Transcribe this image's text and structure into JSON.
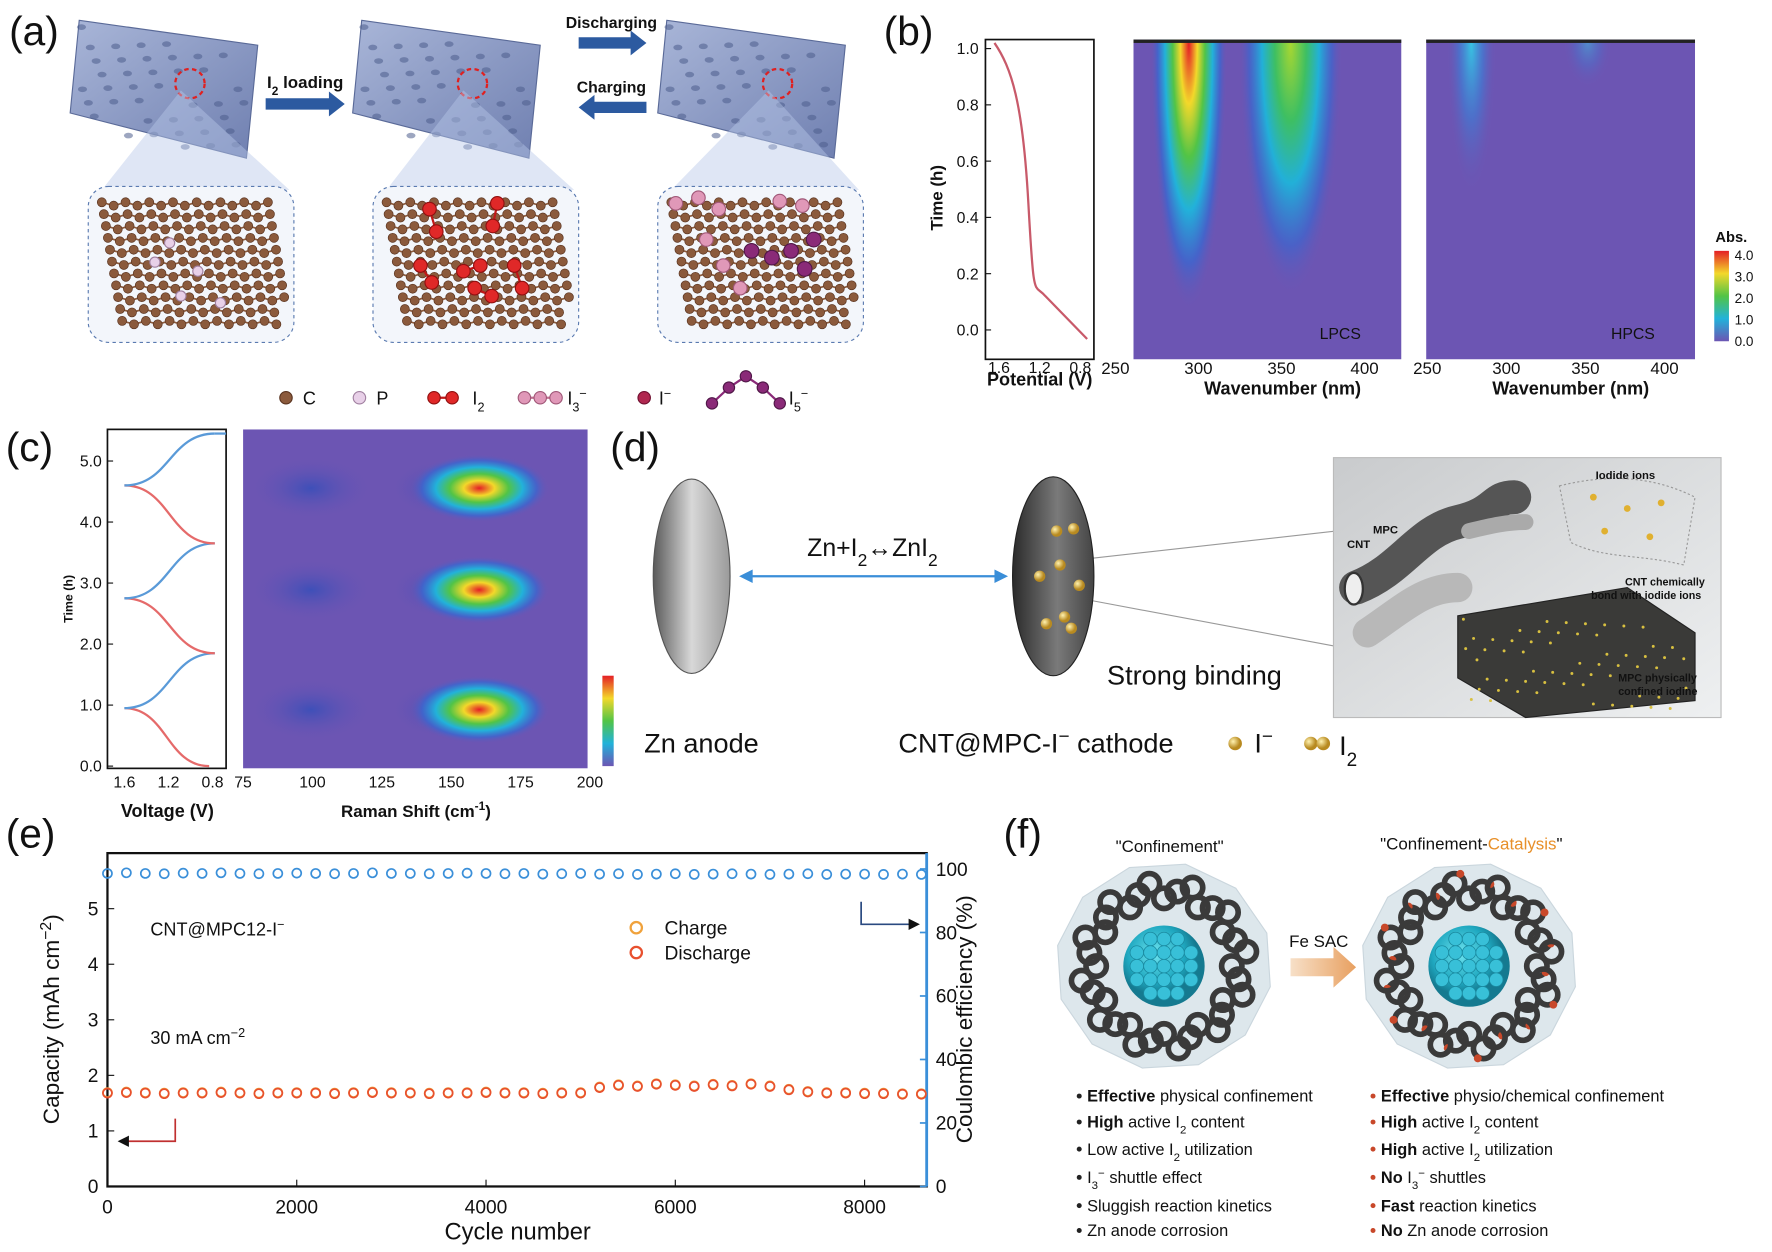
{
  "panel_labels": [
    "(a)",
    "(b)",
    "(c)",
    "(d)",
    "(e)",
    "(f)"
  ],
  "panel_a": {
    "arrows": {
      "loading": [
        {
          "t": "I"
        },
        {
          "sub": "2"
        },
        {
          "t": " loading"
        }
      ],
      "discharging": "Discharging",
      "charging": "Charging"
    },
    "legend": [
      "C",
      "P",
      [
        {
          "t": "I"
        },
        {
          "sub": "2"
        }
      ],
      [
        {
          "t": "I"
        },
        {
          "sub": "3"
        },
        {
          "sup": "−"
        }
      ],
      [
        {
          "t": "I"
        },
        {
          "sup": "−"
        }
      ],
      [
        {
          "t": "I"
        },
        {
          "sub": "5"
        },
        {
          "sup": "−"
        }
      ]
    ]
  },
  "panel_b": {
    "potential_plot": {
      "y_label": "Time (h)",
      "x_label": "Potential (V)",
      "yticks": [
        "0.0",
        "0.2",
        "0.4",
        "0.6",
        "0.8",
        "1.0"
      ],
      "xticks": [
        "1.6",
        "1.2",
        "0.8"
      ]
    },
    "maps": [
      {
        "label": "LPCS"
      },
      {
        "label": "HPCS"
      }
    ],
    "map_xticks": [
      "250",
      "300",
      "350",
      "400"
    ],
    "map_x_label": "Wavenumber (nm)",
    "colorbar": {
      "title": "Abs.",
      "ticks": [
        "4.0",
        "3.0",
        "2.0",
        "1.0",
        "0.0"
      ]
    }
  },
  "panel_c": {
    "y_label": "Time (h)",
    "yticks": [
      "0.0",
      "1.0",
      "2.0",
      "3.0",
      "4.0",
      "5.0"
    ],
    "xticks": [
      "1.6",
      "1.2",
      "0.8"
    ],
    "x_label": "Voltage (V)",
    "map_xticks": [
      "75",
      "100",
      "125",
      "150",
      "175",
      "200"
    ],
    "map_x_label": [
      {
        "t": "Raman Shift (cm"
      },
      {
        "sup": "-1"
      },
      {
        "t": ")"
      }
    ]
  },
  "panel_d": {
    "equation": [
      {
        "t": "Zn+I"
      },
      {
        "sub": "2"
      },
      {
        "t": "↔ZnI"
      },
      {
        "sub": "2"
      }
    ],
    "anode": "Zn anode",
    "cathode": [
      {
        "t": "CNT@MPC-I"
      },
      {
        "sup": "−"
      },
      {
        "t": " cathode"
      }
    ],
    "legend": [
      [
        {
          "t": "I"
        },
        {
          "sup": "−"
        }
      ],
      [
        {
          "t": "I"
        },
        {
          "sub": "2"
        }
      ]
    ],
    "binding": "Strong binding",
    "inset": {
      "iodide": "Iodide ions",
      "cnt": "CNT",
      "mpc": "MPC",
      "cnt_bond": [
        "CNT chemically",
        "bond with iodide ions"
      ],
      "mpc_confined": [
        "MPC physically",
        "confined iodine"
      ]
    }
  },
  "panel_e": {
    "type": "scatter",
    "x_label": "Cycle number",
    "y_label": [
      {
        "t": "Capacity (mAh cm"
      },
      {
        "sup": "−2"
      },
      {
        "t": ")"
      }
    ],
    "y2_label": "Coulombic efficiency (%)",
    "annotations": {
      "sample": [
        {
          "t": "CNT@MPC12-I"
        },
        {
          "sup": "−"
        }
      ],
      "rate": [
        {
          "t": "30 mA cm"
        },
        {
          "sup": "−2"
        }
      ]
    },
    "x": [
      0,
      200,
      400,
      600,
      800,
      1000,
      1200,
      1400,
      1600,
      1800,
      2000,
      2200,
      2400,
      2600,
      2800,
      3000,
      3200,
      3400,
      3600,
      3800,
      4000,
      4200,
      4400,
      4600,
      4800,
      5000,
      5200,
      5400,
      5600,
      5800,
      6000,
      6200,
      6400,
      6600,
      6800,
      7000,
      7200,
      7400,
      7600,
      7800,
      8000,
      8200,
      8400,
      8600
    ],
    "series": [
      {
        "name": "Charge",
        "color": "#f0a23c",
        "values": [
          1.69,
          1.7,
          1.69,
          1.68,
          1.69,
          1.69,
          1.7,
          1.69,
          1.68,
          1.69,
          1.69,
          1.69,
          1.68,
          1.69,
          1.7,
          1.69,
          1.69,
          1.68,
          1.69,
          1.69,
          1.7,
          1.69,
          1.69,
          1.68,
          1.69,
          1.69,
          1.79,
          1.83,
          1.81,
          1.85,
          1.83,
          1.81,
          1.84,
          1.82,
          1.85,
          1.81,
          1.75,
          1.71,
          1.69,
          1.69,
          1.68,
          1.68,
          1.67,
          1.67
        ]
      },
      {
        "name": "Discharge",
        "color": "#e8502e",
        "values": [
          1.68,
          1.69,
          1.68,
          1.67,
          1.68,
          1.68,
          1.69,
          1.68,
          1.67,
          1.68,
          1.68,
          1.68,
          1.67,
          1.68,
          1.69,
          1.68,
          1.68,
          1.67,
          1.68,
          1.68,
          1.69,
          1.68,
          1.68,
          1.67,
          1.68,
          1.68,
          1.78,
          1.82,
          1.8,
          1.84,
          1.82,
          1.8,
          1.83,
          1.81,
          1.84,
          1.8,
          1.74,
          1.7,
          1.68,
          1.68,
          1.67,
          1.67,
          1.66,
          1.66
        ]
      },
      {
        "color": "#3a8fd9",
        "axis": "y2",
        "values": [
          98.6,
          98.8,
          98.6,
          98.5,
          98.7,
          98.6,
          98.8,
          98.6,
          98.5,
          98.6,
          98.7,
          98.6,
          98.5,
          98.6,
          98.8,
          98.6,
          98.6,
          98.5,
          98.6,
          98.7,
          98.6,
          98.5,
          98.6,
          98.4,
          98.5,
          98.6,
          98.4,
          98.5,
          98.3,
          98.4,
          98.5,
          98.3,
          98.4,
          98.5,
          98.4,
          98.3,
          98.4,
          98.5,
          98.3,
          98.4,
          98.4,
          98.3,
          98.4,
          98.3
        ]
      }
    ],
    "xlim": [
      0,
      8656
    ],
    "ylim": [
      0,
      6
    ],
    "y2lim": [
      0,
      105
    ],
    "xticks": [
      0,
      2000,
      4000,
      6000,
      8000
    ],
    "yticks": [
      0,
      1,
      2,
      3,
      4,
      5
    ],
    "y2ticks": [
      0,
      20,
      40,
      60,
      80,
      100
    ]
  },
  "panel_f": {
    "left_title": "\"Confinement\"",
    "right_title": [
      {
        "t": "\"Confinement-"
      },
      {
        "accent": "Catalysis"
      },
      {
        "t": "\""
      }
    ],
    "arrow_label": "Fe SAC",
    "left_bullets": [
      [
        {
          "b": "Effective"
        },
        {
          "t": " physical confinement"
        }
      ],
      [
        {
          "b": "High"
        },
        {
          "t": " active I"
        },
        {
          "sub": "2"
        },
        {
          "t": " content"
        }
      ],
      [
        {
          "t": "Low active I"
        },
        {
          "sub": "2"
        },
        {
          "t": " utilization"
        }
      ],
      [
        {
          "t": "I"
        },
        {
          "sub": "3"
        },
        {
          "sup": "−"
        },
        {
          "t": " shuttle effect"
        }
      ],
      [
        {
          "t": "Sluggish reaction kinetics"
        }
      ],
      [
        {
          "t": "Zn anode corrosion"
        }
      ]
    ],
    "right_bullets": [
      [
        {
          "b": "Effective"
        },
        {
          "t": " physio/chemical confinement"
        }
      ],
      [
        {
          "b": "High"
        },
        {
          "t": " active I"
        },
        {
          "sub": "2"
        },
        {
          "t": " content"
        }
      ],
      [
        {
          "b": "High"
        },
        {
          "t": " active I"
        },
        {
          "sub": "2"
        },
        {
          "t": " utilization"
        }
      ],
      [
        {
          "b": "No"
        },
        {
          "t": " I"
        },
        {
          "sub": "3"
        },
        {
          "sup": "−"
        },
        {
          "t": " shuttles"
        }
      ],
      [
        {
          "b": "Fast"
        },
        {
          "t": " reaction kinetics"
        }
      ],
      [
        {
          "b": "No"
        },
        {
          "t": " Zn anode corrosion"
        }
      ]
    ]
  }
}
